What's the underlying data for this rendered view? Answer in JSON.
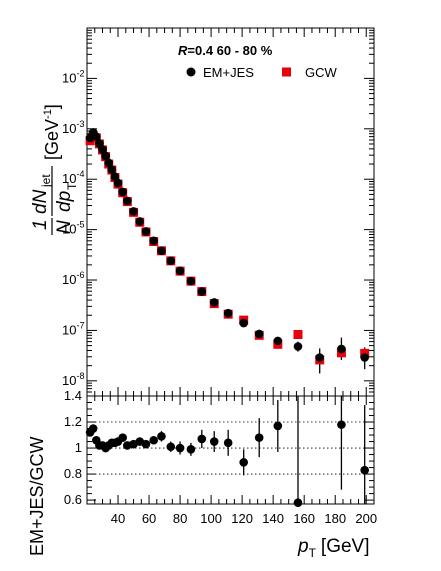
{
  "chart_data": [
    {
      "type": "scatter",
      "title": "R=0.4  60 - 80 %",
      "ylabel": "1/N dN_jet/dp_T [GeV^-1]",
      "ylabel_parts": {
        "one": "1",
        "N": "N",
        "dN": "dN",
        "jet": "jet",
        "dp": "dp",
        "T": "T",
        "unit": "[GeV",
        "unit_exp": "-1",
        "unit_close": "]"
      },
      "xlabel": "p_T [GeV]",
      "xlim": [
        20,
        205
      ],
      "ylim": [
        5e-09,
        0.1
      ],
      "y_scale": "log",
      "y_tick_labels": [
        {
          "base": "10",
          "exp": "-8",
          "value": 1e-08
        },
        {
          "base": "10",
          "exp": "-7",
          "value": 1e-07
        },
        {
          "base": "10",
          "exp": "-6",
          "value": 1e-06
        },
        {
          "base": "10",
          "exp": "-5",
          "value": 1e-05
        },
        {
          "base": "10",
          "exp": "-4",
          "value": 0.0001
        },
        {
          "base": "10",
          "exp": "-3",
          "value": 0.001
        },
        {
          "base": "10",
          "exp": "-2",
          "value": 0.01
        }
      ],
      "legend_placement": "top-right",
      "series": [
        {
          "name": "EM+JES",
          "marker": "circle",
          "color": "#000000",
          "x": [
            22,
            24,
            26,
            28,
            30,
            32,
            34,
            36,
            38,
            40,
            43,
            46,
            50,
            54,
            58,
            63,
            68,
            74,
            80,
            87,
            94,
            102,
            111,
            121,
            131,
            143,
            156,
            170,
            184,
            199
          ],
          "y": [
            0.00066,
            0.00085,
            0.0007,
            0.00051,
            0.00039,
            0.00029,
            0.00021,
            0.000155,
            0.000112,
            8.4e-05,
            5.6e-05,
            3.7e-05,
            2.3e-05,
            1.45e-05,
            9.2e-06,
            6e-06,
            3.8e-06,
            2.4e-06,
            1.52e-06,
            9.5e-07,
            5.9e-07,
            3.6e-07,
            2.2e-07,
            1.4e-07,
            8.5e-08,
            6.2e-08,
            4.8e-08,
            2.9e-08,
            4.3e-08,
            2.9e-08
          ]
        },
        {
          "name": "GCW",
          "marker": "square",
          "color": "#e8000b",
          "x": [
            22,
            24,
            26,
            28,
            30,
            32,
            34,
            36,
            38,
            40,
            43,
            46,
            50,
            54,
            58,
            63,
            68,
            74,
            80,
            87,
            94,
            102,
            111,
            121,
            131,
            143,
            156,
            170,
            184,
            199
          ],
          "y": [
            0.00058,
            0.00073,
            0.00066,
            0.0005,
            0.00038,
            0.00028,
            0.0002,
            0.000152,
            0.000108,
            8e-05,
            5.4e-05,
            3.6e-05,
            2.2e-05,
            1.4e-05,
            9e-06,
            5.8e-06,
            3.8e-06,
            2.4e-06,
            1.5e-06,
            9.5e-07,
            5.9e-07,
            3.4e-07,
            2.1e-07,
            1.6e-07,
            8e-08,
            5.3e-08,
            8.3e-08,
            2.6e-08,
            3.6e-08,
            3.5e-08
          ]
        }
      ],
      "y_error_series": "EM+JES",
      "y_errors": [
        {
          "x": 131,
          "lo": 7.6e-08,
          "hi": 9.6e-08
        },
        {
          "x": 143,
          "lo": 5.3e-08,
          "hi": 7.2e-08
        },
        {
          "x": 156,
          "lo": 3.8e-08,
          "hi": 6e-08
        },
        {
          "x": 170,
          "lo": 1.4e-08,
          "hi": 4.4e-08
        },
        {
          "x": 184,
          "lo": 2.6e-08,
          "hi": 7.2e-08
        },
        {
          "x": 199,
          "lo": 1.7e-08,
          "hi": 4.6e-08
        }
      ]
    },
    {
      "type": "scatter",
      "ylabel": "EM+JES/GCW",
      "xlabel": "p_T [GeV]",
      "xlim": [
        20,
        205
      ],
      "ylim": [
        0.57,
        1.4
      ],
      "x_tick_labels": [
        "40",
        "60",
        "80",
        "100",
        "120",
        "140",
        "160",
        "180",
        "200"
      ],
      "x_tick_values": [
        40,
        60,
        80,
        100,
        120,
        140,
        160,
        180,
        200
      ],
      "y_tick_labels": [
        "0.6",
        "0.8",
        "1",
        "1.2",
        "1.4"
      ],
      "y_tick_values": [
        0.6,
        0.8,
        1.0,
        1.2,
        1.4
      ],
      "grid": "dotted horizontal at 0.8, 1.0, 1.2",
      "series": [
        {
          "name": "EM+JES/GCW",
          "x": [
            22,
            24,
            26,
            28,
            30,
            32,
            34,
            36,
            38,
            40,
            43,
            46,
            50,
            54,
            58,
            63,
            68,
            74,
            80,
            87,
            94,
            102,
            111,
            121,
            131,
            143,
            156,
            184,
            199
          ],
          "y": [
            1.12,
            1.15,
            1.06,
            1.02,
            1.02,
            1.0,
            1.02,
            1.04,
            1.04,
            1.05,
            1.08,
            1.02,
            1.03,
            1.05,
            1.03,
            1.06,
            1.09,
            1.01,
            1.0,
            0.99,
            1.07,
            1.05,
            1.04,
            0.89,
            1.08,
            1.17,
            0.58,
            1.18,
            0.83
          ],
          "err_lo": [
            0.02,
            0.02,
            0.02,
            0.02,
            0.02,
            0.02,
            0.02,
            0.02,
            0.02,
            0.02,
            0.02,
            0.02,
            0.02,
            0.02,
            0.02,
            0.02,
            0.04,
            0.04,
            0.05,
            0.05,
            0.07,
            0.08,
            0.1,
            0.1,
            0.15,
            0.2,
            0.2,
            0.5,
            0.5
          ],
          "err_hi": [
            0.02,
            0.02,
            0.02,
            0.02,
            0.02,
            0.02,
            0.02,
            0.02,
            0.02,
            0.02,
            0.02,
            0.02,
            0.02,
            0.02,
            0.02,
            0.02,
            0.04,
            0.04,
            0.05,
            0.05,
            0.07,
            0.08,
            0.1,
            0.1,
            0.15,
            0.2,
            0.85,
            0.45,
            0.5
          ]
        }
      ]
    }
  ],
  "legend": {
    "title_R": "R",
    "title_rest": "=0.4  60 - 80 %",
    "items": [
      {
        "label": "EM+JES",
        "marker": "circle",
        "color": "#000000"
      },
      {
        "label": "GCW",
        "marker": "square",
        "color": "#e8000b"
      }
    ]
  },
  "x_title": {
    "p": "p",
    "sub": "T",
    "unit": "[GeV]"
  },
  "ratio_title": "EM+JES/GCW"
}
